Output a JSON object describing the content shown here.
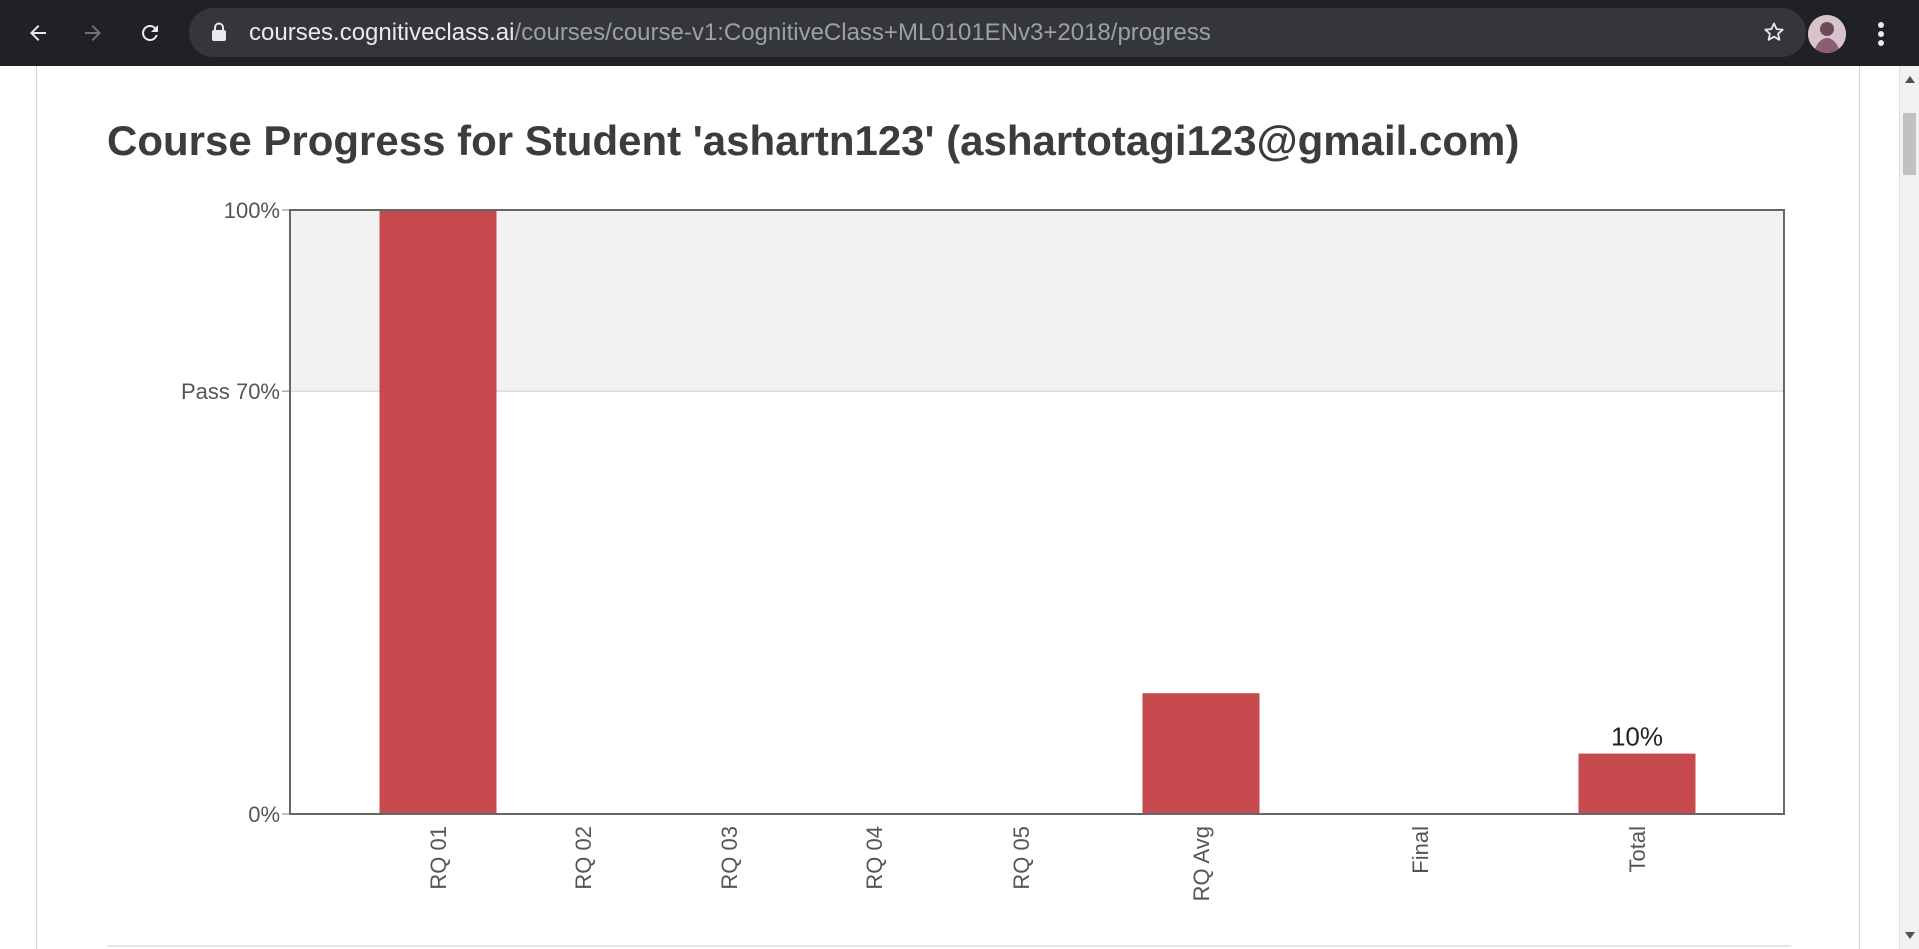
{
  "browser": {
    "url_host": "courses.cognitiveclass.ai",
    "url_path": "/courses/course-v1:CognitiveClass+ML0101ENv3+2018/progress"
  },
  "icons": {
    "back": "arrow-left-icon",
    "forward": "arrow-right-icon",
    "reload": "reload-icon",
    "lock": "lock-icon",
    "bookmark": "star-icon",
    "menu": "kebab-menu-icon"
  },
  "page": {
    "title": "Course Progress for Student 'ashartn123' (ashartotagi123@gmail.com)"
  },
  "chart_data": {
    "type": "bar",
    "categories": [
      "RQ 01",
      "RQ 02",
      "RQ 03",
      "RQ 04",
      "RQ 05",
      "RQ Avg",
      "Final",
      "Total"
    ],
    "values": [
      100,
      0,
      0,
      0,
      0,
      20,
      0,
      10
    ],
    "data_labels": [
      "",
      "",
      "",
      "",
      "",
      "",
      "",
      "10%"
    ],
    "ylim": [
      0,
      100
    ],
    "yticks": [
      {
        "value": 0,
        "label": "0%"
      },
      {
        "value": 70,
        "label": "Pass 70%"
      },
      {
        "value": 100,
        "label": "100%"
      }
    ],
    "pass_band": [
      70,
      100
    ],
    "bar_color": "#c23b3f",
    "band_color": "#f2f2f2"
  }
}
